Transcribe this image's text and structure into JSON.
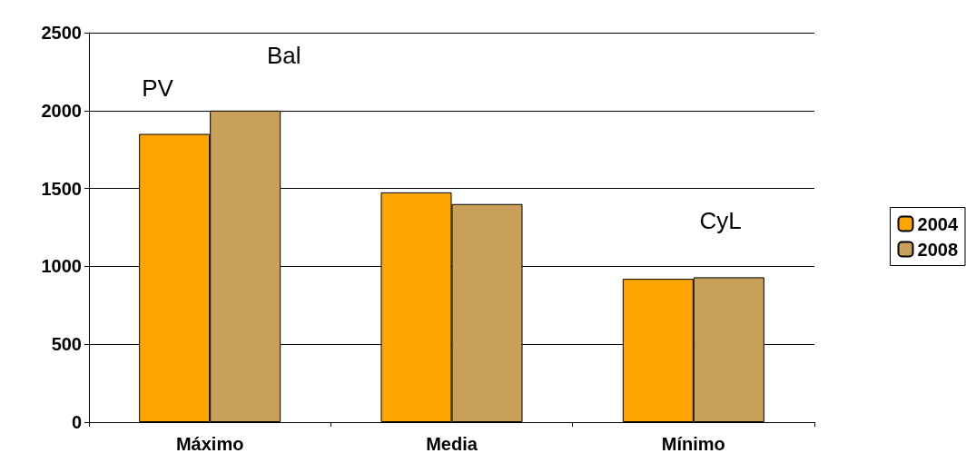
{
  "chart_data": {
    "type": "bar",
    "categories": [
      "Máximo",
      "Media",
      "Mínimo"
    ],
    "series": [
      {
        "name": "2004",
        "color": "#ffa500",
        "values": [
          1850,
          1475,
          920
        ]
      },
      {
        "name": "2008",
        "color": "#c8a05a",
        "values": [
          2000,
          1400,
          930
        ]
      }
    ],
    "ylim": [
      0,
      2500
    ],
    "yticks": [
      0,
      500,
      1000,
      1500,
      2000,
      2500
    ],
    "grid": "y",
    "legend": "right",
    "annotations": [
      "PV",
      "Bal",
      "CyL"
    ]
  }
}
